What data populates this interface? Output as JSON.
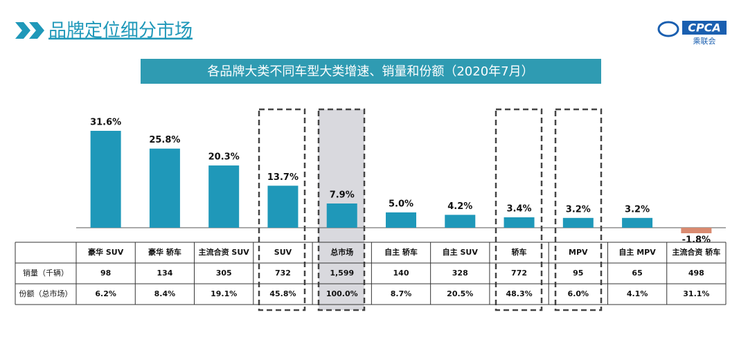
{
  "header": {
    "title": "品牌定位细分市场",
    "logo": "CPCA",
    "logo_sub": "乘联会"
  },
  "chart_data": {
    "type": "bar",
    "title": "各品牌大类不同车型大类增速、销量和份额（2020年7月）",
    "categories": [
      "豪华 SUV",
      "豪华 轿车",
      "主流合资 SUV",
      "SUV",
      "总市场",
      "自主 轿车",
      "自主 SUV",
      "轿车",
      "MPV",
      "自主 MPV",
      "主流合资 轿车"
    ],
    "values": [
      31.6,
      25.8,
      20.3,
      13.7,
      7.9,
      5.0,
      4.2,
      3.4,
      3.2,
      3.2,
      -1.8
    ],
    "value_labels": [
      "31.6%",
      "25.8%",
      "20.3%",
      "13.7%",
      "7.9%",
      "5.0%",
      "4.2%",
      "3.4%",
      "3.2%",
      "3.2%",
      "-1.8%"
    ],
    "color": "#1f98b9",
    "negative_color": "#d98a70"
  },
  "table": {
    "rows": [
      {
        "label": "销量（千辆）",
        "cells": [
          "98",
          "134",
          "305",
          "732",
          "1,599",
          "140",
          "328",
          "772",
          "95",
          "65",
          "498"
        ]
      },
      {
        "label": "份额（总市场）",
        "cells": [
          "6.2%",
          "8.4%",
          "19.1%",
          "45.8%",
          "100.0%",
          "8.7%",
          "20.5%",
          "48.3%",
          "6.0%",
          "4.1%",
          "31.1%"
        ]
      }
    ]
  }
}
